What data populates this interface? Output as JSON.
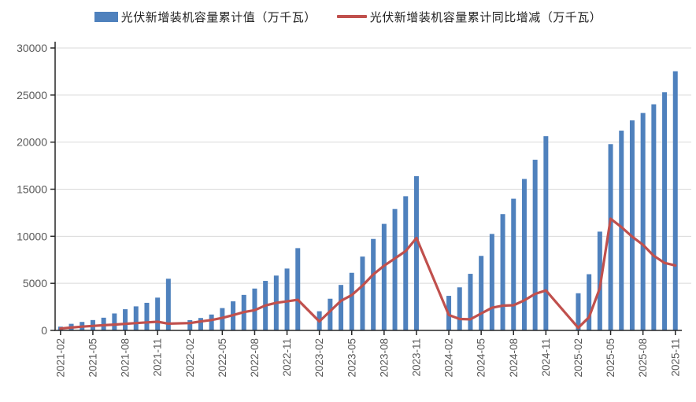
{
  "legend": [
    {
      "label": "光伏新增装机容量累计值（万千瓦）",
      "type": "bar",
      "color": "#4F81BD"
    },
    {
      "label": "光伏新增装机容量累计同比增减（万千瓦）",
      "type": "line",
      "color": "#C0504D"
    }
  ],
  "chart_data": {
    "type": "bar+line",
    "title": "",
    "xlabel": "",
    "ylabel": "",
    "unit": "万千瓦",
    "grid": "horizontal",
    "legend_position": "top-center",
    "y_axis": {
      "min": 0,
      "max": 30000,
      "step": 5000,
      "ticks": [
        0,
        5000,
        10000,
        15000,
        20000,
        25000,
        30000
      ]
    },
    "x_tick_labels": [
      "2021-02",
      "2021-05",
      "2021-08",
      "2021-11",
      "2022-02",
      "2022-05",
      "2022-08",
      "2022-11",
      "2023-02",
      "2023-05",
      "2023-08",
      "2023-11",
      "2024-02",
      "2024-05",
      "2024-08",
      "2024-11",
      "2025-02",
      "2025-05",
      "2025-08",
      "2025-11"
    ],
    "series_names": {
      "bar": "光伏新增装机容量累计值（万千瓦）",
      "line": "光伏新增装机容量累计同比增减（万千瓦）"
    },
    "colors": {
      "bar": "#4F81BD",
      "line": "#C0504D",
      "gridline": "#D9D9D9",
      "axis": "#262626",
      "tick_label": "#595959"
    },
    "slots": [
      {
        "month": "2021-02",
        "cumulative": 400,
        "yoy": 200
      },
      {
        "month": "2021-03",
        "cumulative": 700,
        "yoy": 300
      },
      {
        "month": "2021-04",
        "cumulative": 900,
        "yoy": 400
      },
      {
        "month": "2021-05",
        "cumulative": 1100,
        "yoy": 480
      },
      {
        "month": "2021-06",
        "cumulative": 1350,
        "yoy": 550
      },
      {
        "month": "2021-07",
        "cumulative": 1800,
        "yoy": 620
      },
      {
        "month": "2021-08",
        "cumulative": 2250,
        "yoy": 700
      },
      {
        "month": "2021-09",
        "cumulative": 2556,
        "yoy": 780
      },
      {
        "month": "2021-10",
        "cumulative": 2931,
        "yoy": 850
      },
      {
        "month": "2021-11",
        "cumulative": 3483,
        "yoy": 920
      },
      {
        "month": "2021-12",
        "cumulative": 5488,
        "yoy": 720
      },
      {
        "month": "2022-01",
        "cumulative": null,
        "yoy": null
      },
      {
        "month": "2022-02",
        "cumulative": 1086,
        "yoy": 780
      },
      {
        "month": "2022-03",
        "cumulative": 1321,
        "yoy": 950
      },
      {
        "month": "2022-04",
        "cumulative": 1688,
        "yoy": 1100
      },
      {
        "month": "2022-05",
        "cumulative": 2371,
        "yoy": 1330
      },
      {
        "month": "2022-06",
        "cumulative": 3088,
        "yoy": 1620
      },
      {
        "month": "2022-07",
        "cumulative": 3773,
        "yoy": 1950
      },
      {
        "month": "2022-08",
        "cumulative": 4447,
        "yoy": 2150
      },
      {
        "month": "2022-09",
        "cumulative": 5260,
        "yoy": 2650
      },
      {
        "month": "2022-10",
        "cumulative": 5824,
        "yoy": 2930
      },
      {
        "month": "2022-11",
        "cumulative": 6571,
        "yoy": 3080
      },
      {
        "month": "2022-12",
        "cumulative": 8741,
        "yoy": 3253
      },
      {
        "month": "2023-01",
        "cumulative": null,
        "yoy": null
      },
      {
        "month": "2023-02",
        "cumulative": 2036,
        "yoy": 950
      },
      {
        "month": "2023-03",
        "cumulative": 3366,
        "yoy": 2045
      },
      {
        "month": "2023-04",
        "cumulative": 4831,
        "yoy": 3143
      },
      {
        "month": "2023-05",
        "cumulative": 6121,
        "yoy": 3750
      },
      {
        "month": "2023-06",
        "cumulative": 7842,
        "yoy": 4754
      },
      {
        "month": "2023-07",
        "cumulative": 9716,
        "yoy": 5943
      },
      {
        "month": "2023-08",
        "cumulative": 11316,
        "yoy": 6869
      },
      {
        "month": "2023-09",
        "cumulative": 12894,
        "yoy": 7634
      },
      {
        "month": "2023-10",
        "cumulative": 14256,
        "yoy": 8432
      },
      {
        "month": "2023-11",
        "cumulative": 16388,
        "yoy": 9817
      },
      {
        "month": "2023-12",
        "cumulative": null,
        "yoy": null
      },
      {
        "month": "2024-01",
        "cumulative": null,
        "yoy": null
      },
      {
        "month": "2024-02",
        "cumulative": 3672,
        "yoy": 1636
      },
      {
        "month": "2024-03",
        "cumulative": 4574,
        "yoy": 1208
      },
      {
        "month": "2024-04",
        "cumulative": 6011,
        "yoy": 1180
      },
      {
        "month": "2024-05",
        "cumulative": 7915,
        "yoy": 1794
      },
      {
        "month": "2024-06",
        "cumulative": 10248,
        "yoy": 2406
      },
      {
        "month": "2024-07",
        "cumulative": 12352,
        "yoy": 2636
      },
      {
        "month": "2024-08",
        "cumulative": 13990,
        "yoy": 2674
      },
      {
        "month": "2024-09",
        "cumulative": 16088,
        "yoy": 3194
      },
      {
        "month": "2024-10",
        "cumulative": 18130,
        "yoy": 3874
      },
      {
        "month": "2024-11",
        "cumulative": 20630,
        "yoy": 4242
      },
      {
        "month": "2024-12",
        "cumulative": null,
        "yoy": null
      },
      {
        "month": "2025-01",
        "cumulative": null,
        "yoy": null
      },
      {
        "month": "2025-02",
        "cumulative": 3947,
        "yoy": 275
      },
      {
        "month": "2025-03",
        "cumulative": 5971,
        "yoy": 1397
      },
      {
        "month": "2025-04",
        "cumulative": 10493,
        "yoy": 4482
      },
      {
        "month": "2025-05",
        "cumulative": 19785,
        "yoy": 11870
      },
      {
        "month": "2025-06",
        "cumulative": 21221,
        "yoy": 10973
      },
      {
        "month": "2025-07",
        "cumulative": 22310,
        "yoy": 9958
      },
      {
        "month": "2025-08",
        "cumulative": 23094,
        "yoy": 9104
      },
      {
        "month": "2025-09",
        "cumulative": 24020,
        "yoy": 7930
      },
      {
        "month": "2025-10",
        "cumulative": 25300,
        "yoy": 7170
      },
      {
        "month": "2025-11",
        "cumulative": 27530,
        "yoy": 6900
      }
    ]
  }
}
